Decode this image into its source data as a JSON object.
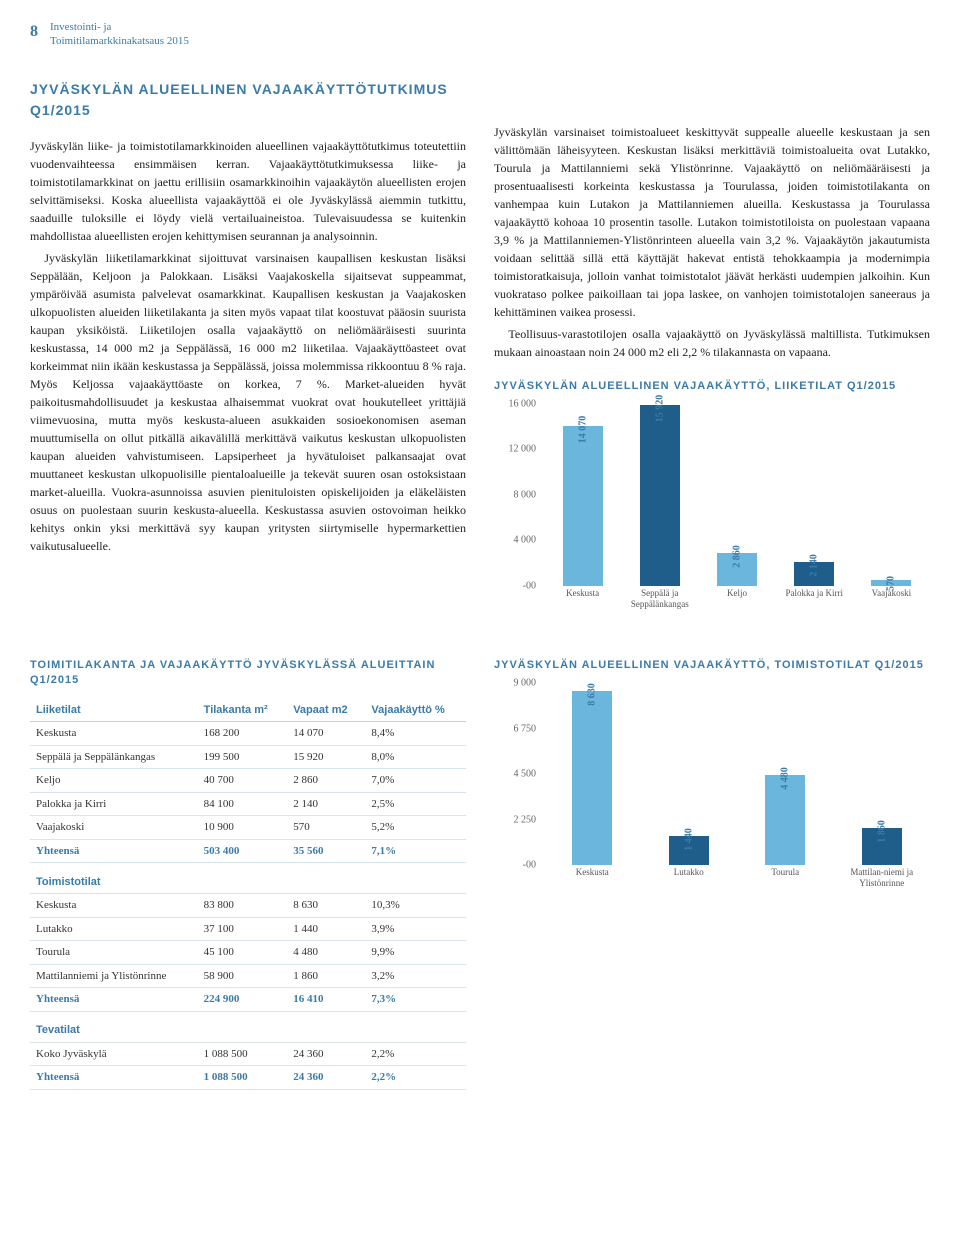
{
  "header": {
    "page_number": "8",
    "sub1": "Investointi- ja",
    "sub2": "Toimitilamarkkinakatsaus 2015"
  },
  "main_heading": "JYVÄSKYLÄN ALUEELLINEN VAJAAKÄYTTÖTUTKIMUS Q1/2015",
  "body_left": [
    "Jyväskylän liike- ja toimistotilamarkkinoiden alueellinen vajaakäyttötutkimus toteutettiin vuodenvaihteessa ensimmäisen kerran. Vajaakäyttötutkimuksessa liike- ja toimistotilamarkkinat on jaettu erillisiin osamarkkinoihin vajaakäytön alueellisten erojen selvittämiseksi. Koska alueellista vajaakäyttöä ei ole Jyväskylässä aiemmin tutkittu, saaduille tuloksille ei löydy vielä vertailuaineistoa. Tulevaisuudessa se kuitenkin mahdollistaa alueellisten erojen kehittymisen seurannan ja analysoinnin.",
    "Jyväskylän liiketilamarkkinat sijoittuvat varsinaisen kaupallisen keskustan lisäksi Seppälään, Keljoon ja Palokkaan. Lisäksi Vaajakoskella sijaitsevat suppeammat, ympäröivää asumista palvelevat osamarkkinat. Kaupallisen keskustan ja Vaajakosken ulkopuolisten alueiden liiketilakanta ja siten myös vapaat tilat koostuvat pääosin suurista kaupan yksiköistä. Liiketilojen osalla vajaakäyttö on neliömääräisesti suurinta keskustassa, 14 000 m2 ja Seppälässä, 16 000 m2 liiketilaa. Vajaakäyttöasteet ovat korkeimmat niin ikään keskustassa ja Seppälässä, joissa molemmissa rikkoontuu 8 % raja. Myös Keljossa vajaakäyttöaste on korkea, 7 %. Market-alueiden hyvät paikoitusmahdollisuudet ja keskustaa alhaisemmat vuokrat ovat houkutelleet yrittäjiä viimevuosina, mutta myös keskusta-alueen asukkaiden sosioekonomisen aseman muuttumisella on ollut pitkällä aikavälillä merkittävä vaikutus keskustan ulkopuolisten kaupan alueiden vahvistumiseen. Lapsiperheet ja hyvätuloiset palkansaajat ovat muuttaneet keskustan ulkopuolisille pientaloalueille ja tekevät suuren osan ostoksistaan market-alueilla. Vuokra-asunnoissa asuvien pienituloisten opiskelijoiden ja eläkeläisten osuus on puolestaan suurin keskusta-alueella. Keskustassa asuvien ostovoiman heikko kehitys onkin yksi merkittävä syy kaupan yritysten siirtymiselle hypermarkettien vaikutusalueelle."
  ],
  "body_right": [
    "Jyväskylän varsinaiset toimistoalueet keskittyvät suppealle alueelle keskustaan ja sen välittömään läheisyyteen. Keskustan lisäksi merkittäviä toimistoalueita ovat Lutakko, Tourula ja Mattilanniemi sekä Ylistönrinne. Vajaakäyttö on neliömääräisesti ja prosentuaalisesti korkeinta keskustassa ja Tourulassa, joiden toimistotilakanta on vanhempaa kuin Lutakon ja Mattilanniemen alueilla. Keskustassa ja Tourulassa vajaakäyttö kohoaa 10 prosentin tasolle. Lutakon toimistotiloista on puolestaan vapaana 3,9 % ja Mattilanniemen-Ylistönrinteen alueella vain 3,2 %. Vajaakäytön jakautumista voidaan selittää sillä että käyttäjät hakevat entistä tehokkaampia ja modernimpia toimistoratkaisuja, jolloin vanhat toimistotalot jäävät herkästi uudempien jalkoihin. Kun vuokrataso polkee paikoillaan tai jopa laskee, on vanhojen toimistotalojen saneeraus ja kehittäminen vaikea prosessi.",
    "Teollisuus-varastotilojen osalla vajaakäyttö on Jyväskylässä maltillista. Tutkimuksen mukaan ainoastaan noin 24 000 m2 eli 2,2 % tilakannasta on vapaana."
  ],
  "table_heading": "TOIMITILAKANTA JA VAJAAKÄYTTÖ JYVÄSKYLÄSSÄ ALUEITTAIN Q1/2015",
  "table": {
    "headers": [
      "",
      "Tilakanta m²",
      "Vapaat m2",
      "Vajaakäyttö %"
    ],
    "sections": [
      {
        "title": "Liiketilat",
        "rows": [
          [
            "Keskusta",
            "168 200",
            "14 070",
            "8,4%"
          ],
          [
            "Seppälä ja Seppälänkangas",
            "199 500",
            "15 920",
            "8,0%"
          ],
          [
            "Keljo",
            "40 700",
            "2 860",
            "7,0%"
          ],
          [
            "Palokka ja Kirri",
            "84 100",
            "2 140",
            "2,5%"
          ],
          [
            "Vaajakoski",
            "10 900",
            "570",
            "5,2%"
          ]
        ],
        "total": [
          "Yhteensä",
          "503 400",
          "35 560",
          "7,1%"
        ]
      },
      {
        "title": "Toimistotilat",
        "rows": [
          [
            "Keskusta",
            "83 800",
            "8 630",
            "10,3%"
          ],
          [
            "Lutakko",
            "37 100",
            "1 440",
            "3,9%"
          ],
          [
            "Tourula",
            "45 100",
            "4 480",
            "9,9%"
          ],
          [
            "Mattilanniemi ja Ylistönrinne",
            "58 900",
            "1 860",
            "3,2%"
          ]
        ],
        "total": [
          "Yhteensä",
          "224 900",
          "16 410",
          "7,3%"
        ]
      },
      {
        "title": "Tevatilat",
        "rows": [
          [
            "Koko Jyväskylä",
            "1 088 500",
            "24 360",
            "2,2%"
          ]
        ],
        "total": [
          "Yhteensä",
          "1 088 500",
          "24 360",
          "2,2%"
        ]
      }
    ]
  },
  "chart1": {
    "heading": "JYVÄSKYLÄN ALUEELLINEN VAJAAKÄYTTÖ, LIIKETILAT Q1/2015",
    "ymax": 16000,
    "yticks": [
      "16 000",
      "12 000",
      "8 000",
      "4 000",
      "-00"
    ],
    "bars": [
      {
        "label": "Keskusta",
        "value": 14070,
        "display": "14 070",
        "color": "#6ab6dd"
      },
      {
        "label": "Seppälä ja Seppälänkangas",
        "value": 15920,
        "display": "15 920",
        "color": "#1f5d8b"
      },
      {
        "label": "Keljo",
        "value": 2860,
        "display": "2 860",
        "color": "#6ab6dd"
      },
      {
        "label": "Palokka ja Kirri",
        "value": 2140,
        "display": "2 140",
        "color": "#1f5d8b"
      },
      {
        "label": "Vaajakoski",
        "value": 570,
        "display": "570",
        "color": "#6ab6dd"
      }
    ]
  },
  "chart2": {
    "heading": "JYVÄSKYLÄN ALUEELLINEN VAJAAKÄYTTÖ, TOIMISTOTILAT Q1/2015",
    "ymax": 9000,
    "yticks": [
      "9 000",
      "6 750",
      "4 500",
      "2 250",
      "-00"
    ],
    "bars": [
      {
        "label": "Keskusta",
        "value": 8630,
        "display": "8 630",
        "color": "#6ab6dd"
      },
      {
        "label": "Lutakko",
        "value": 1440,
        "display": "1 440",
        "color": "#1f5d8b"
      },
      {
        "label": "Tourula",
        "value": 4480,
        "display": "4 480",
        "color": "#6ab6dd"
      },
      {
        "label": "Mattilan-niemi ja Ylistönrinne",
        "value": 1860,
        "display": "1 860",
        "color": "#1f5d8b"
      }
    ]
  }
}
